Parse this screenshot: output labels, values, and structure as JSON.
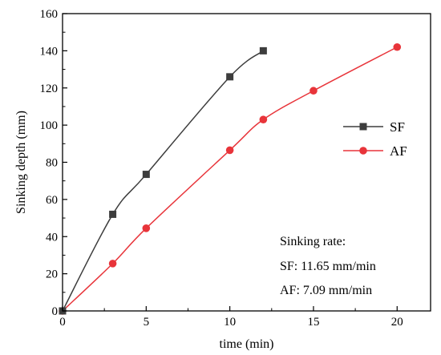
{
  "chart_data": {
    "type": "line",
    "title": "",
    "xlabel": "time (min)",
    "ylabel": "Sinking depth (mm)",
    "xlim": [
      0,
      22
    ],
    "ylim": [
      0,
      160
    ],
    "xticks": [
      0,
      5,
      10,
      15,
      20
    ],
    "yticks": [
      0,
      20,
      40,
      60,
      80,
      100,
      120,
      140,
      160
    ],
    "grid": false,
    "legend_position": "right",
    "series": [
      {
        "name": "SF",
        "color": "#3d3d3d",
        "marker": "square",
        "x": [
          0,
          3,
          5,
          10,
          12
        ],
        "y": [
          0,
          52,
          73.5,
          126,
          140
        ]
      },
      {
        "name": "AF",
        "color": "#e8343a",
        "marker": "circle",
        "x": [
          0,
          3,
          5,
          10,
          12,
          15,
          20
        ],
        "y": [
          0,
          25.5,
          44.5,
          86.5,
          103,
          118.5,
          142
        ]
      }
    ],
    "annotations": {
      "line1": "Sinking rate:",
      "line2": "SF: 11.65 mm/min",
      "line3": "AF: 7.09 mm/min"
    }
  }
}
